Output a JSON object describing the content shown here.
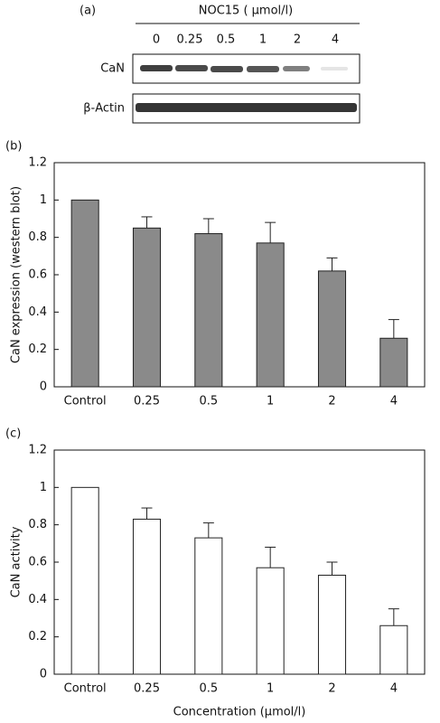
{
  "blot": {
    "panel": "(a)",
    "header": "NOC15 ( μmol/l)",
    "lanes": [
      "0",
      "0.25",
      "0.5",
      "1",
      "2",
      "4"
    ],
    "rows": [
      "CaN",
      "β-Actin"
    ]
  },
  "chart_data": [
    {
      "type": "bar",
      "panel": "(b)",
      "y_label": "CaN expression (western blot)",
      "categories": [
        "Control",
        "0.25",
        "0.5",
        "1",
        "2",
        "4"
      ],
      "values": [
        1,
        0.85,
        0.82,
        0.77,
        0.62,
        0.26
      ],
      "errors": [
        null,
        0.06,
        0.08,
        0.11,
        0.07,
        0.1
      ],
      "color": "#8a8a8a",
      "ylim": [
        0,
        1.2
      ],
      "yticks": [
        0,
        0.2,
        0.4,
        0.6,
        0.8,
        1,
        1.2
      ]
    },
    {
      "type": "bar",
      "panel": "(c)",
      "y_label": "CaN activity",
      "x_label": "Concentration (μmol/l)",
      "categories": [
        "Control",
        "0.25",
        "0.5",
        "1",
        "2",
        "4"
      ],
      "values": [
        1,
        0.83,
        0.73,
        0.57,
        0.53,
        0.26
      ],
      "errors": [
        null,
        0.06,
        0.08,
        0.11,
        0.07,
        0.09
      ],
      "color": "#ffffff",
      "ylim": [
        0,
        1.2
      ],
      "yticks": [
        0,
        0.2,
        0.4,
        0.6,
        0.8,
        1,
        1.2
      ]
    }
  ]
}
